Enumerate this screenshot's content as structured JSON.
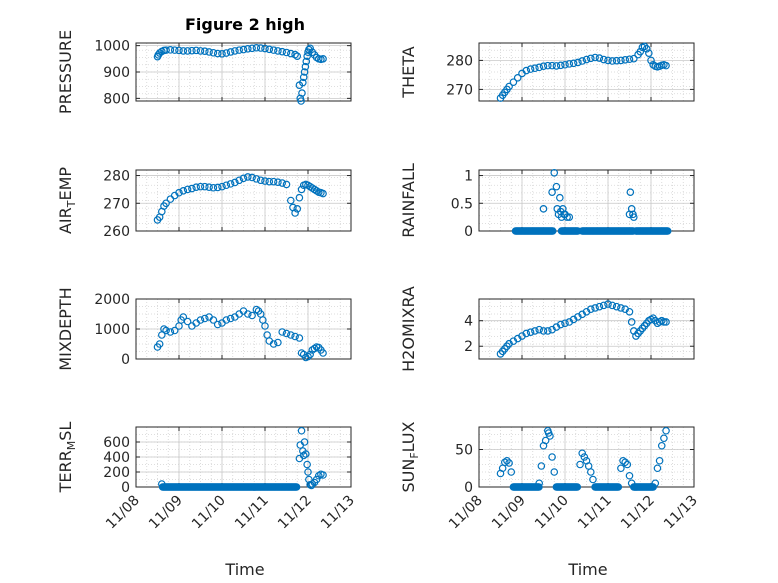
{
  "figure": {
    "title": "Figure 2 high",
    "marker_color": "#0072BD",
    "xlabel": "Time",
    "xticks": [
      "11/08",
      "11/09",
      "11/10",
      "11/11",
      "11/12",
      "11/13"
    ]
  },
  "chart_data": [
    {
      "type": "scatter",
      "ylabel": "PRESSURE",
      "title": "Figure 2 high",
      "xlim": [
        8,
        13
      ],
      "ylim": [
        790,
        1010
      ],
      "yticks": [
        800,
        900,
        1000
      ],
      "grid": true,
      "x": [
        8.5,
        8.52,
        8.55,
        8.6,
        8.65,
        8.7,
        8.8,
        8.9,
        9.0,
        9.1,
        9.2,
        9.3,
        9.4,
        9.5,
        9.6,
        9.7,
        9.8,
        9.9,
        10.0,
        10.1,
        10.2,
        10.3,
        10.4,
        10.5,
        10.6,
        10.7,
        10.8,
        10.9,
        11.0,
        11.1,
        11.2,
        11.3,
        11.4,
        11.5,
        11.6,
        11.7,
        11.75,
        11.8,
        11.82,
        11.84,
        11.86,
        11.88,
        11.9,
        11.92,
        11.94,
        11.96,
        11.98,
        12.0,
        12.02,
        12.05,
        12.1,
        12.15,
        12.2,
        12.25,
        12.3,
        12.35
      ],
      "y": [
        958,
        965,
        972,
        978,
        982,
        983,
        984,
        983,
        982,
        980,
        980,
        981,
        982,
        980,
        979,
        976,
        973,
        970,
        969,
        972,
        976,
        980,
        983,
        985,
        988,
        990,
        992,
        991,
        989,
        986,
        983,
        980,
        977,
        974,
        970,
        966,
        960,
        850,
        800,
        790,
        820,
        860,
        880,
        900,
        920,
        940,
        960,
        975,
        985,
        990,
        975,
        965,
        955,
        950,
        948,
        950
      ]
    },
    {
      "type": "scatter",
      "ylabel": "THETA",
      "xlim": [
        8,
        13
      ],
      "ylim": [
        266,
        286
      ],
      "yticks": [
        270,
        280
      ],
      "grid": true,
      "x": [
        8.5,
        8.55,
        8.6,
        8.65,
        8.7,
        8.8,
        8.9,
        9.0,
        9.1,
        9.2,
        9.3,
        9.4,
        9.5,
        9.6,
        9.7,
        9.8,
        9.9,
        10.0,
        10.1,
        10.2,
        10.3,
        10.4,
        10.5,
        10.6,
        10.7,
        10.8,
        10.9,
        11.0,
        11.1,
        11.2,
        11.3,
        11.4,
        11.5,
        11.6,
        11.7,
        11.75,
        11.8,
        11.85,
        11.9,
        11.95,
        12.0,
        12.05,
        12.1,
        12.15,
        12.2,
        12.25,
        12.3,
        12.35
      ],
      "y": [
        267,
        268,
        269,
        270,
        271,
        272.5,
        274,
        275.5,
        276.5,
        277,
        277.3,
        277.6,
        278,
        278.2,
        278.2,
        278.1,
        278.3,
        278.5,
        278.8,
        279,
        279.3,
        279.8,
        280.3,
        280.7,
        281,
        280.8,
        280.3,
        280,
        279.8,
        279.9,
        280,
        280.2,
        280.4,
        280.6,
        282,
        283,
        284.5,
        284.8,
        284,
        282.5,
        280,
        278.5,
        278,
        277.8,
        278,
        278.3,
        278.5,
        278.2
      ]
    },
    {
      "type": "scatter",
      "ylabel": "AIR_TEMP",
      "xlim": [
        8,
        13
      ],
      "ylim": [
        260,
        282
      ],
      "yticks": [
        260,
        270,
        280
      ],
      "grid": true,
      "x": [
        8.5,
        8.55,
        8.6,
        8.65,
        8.7,
        8.8,
        8.9,
        9.0,
        9.1,
        9.2,
        9.3,
        9.4,
        9.5,
        9.6,
        9.7,
        9.8,
        9.9,
        10.0,
        10.1,
        10.2,
        10.3,
        10.4,
        10.5,
        10.6,
        10.7,
        10.8,
        10.9,
        11.0,
        11.1,
        11.2,
        11.3,
        11.4,
        11.5,
        11.6,
        11.65,
        11.7,
        11.75,
        11.8,
        11.85,
        11.9,
        11.95,
        12.0,
        12.05,
        12.1,
        12.15,
        12.2,
        12.25,
        12.3,
        12.35
      ],
      "y": [
        264,
        265,
        267,
        269,
        270,
        271.5,
        272.8,
        273.8,
        274.5,
        275,
        275.3,
        275.8,
        276,
        276,
        275.8,
        275.6,
        275.7,
        276,
        276.5,
        277,
        277.5,
        278.3,
        279,
        279.5,
        279.3,
        278.8,
        278.3,
        278,
        277.8,
        277.8,
        277.6,
        277.3,
        276.8,
        271,
        268.5,
        266.5,
        268,
        272,
        275,
        276.5,
        276.8,
        276.5,
        276,
        275.5,
        275,
        274.5,
        274,
        273.8,
        273.5
      ]
    },
    {
      "type": "scatter",
      "ylabel": "RAINFALL",
      "xlim": [
        8,
        13
      ],
      "ylim": [
        0,
        1.1
      ],
      "yticks": [
        0,
        0.5,
        1
      ],
      "grid": true,
      "x": [
        9.5,
        9.7,
        9.75,
        9.8,
        9.82,
        9.85,
        9.88,
        9.9,
        9.92,
        9.95,
        9.98,
        10.0,
        10.05,
        10.1,
        11.5,
        11.52,
        11.55,
        11.58,
        11.6
      ],
      "y": [
        0.4,
        0.7,
        1.05,
        0.8,
        0.4,
        0.3,
        0.6,
        0.35,
        0.25,
        0.4,
        0.3,
        0.3,
        0.25,
        0.25,
        0.3,
        0.7,
        0.4,
        0.3,
        0.25
      ],
      "baseline": {
        "y": 0,
        "x_start": 8.85,
        "x_end": 12.4,
        "segments": [
          [
            8.85,
            9.72
          ],
          [
            9.92,
            10.3
          ],
          [
            10.4,
            11.6
          ],
          [
            11.65,
            12.4
          ]
        ]
      }
    },
    {
      "type": "scatter",
      "ylabel": "MIXDEPTH",
      "xlim": [
        8,
        13
      ],
      "ylim": [
        0,
        2000
      ],
      "yticks": [
        0,
        1000,
        2000
      ],
      "grid": true,
      "x": [
        8.5,
        8.55,
        8.6,
        8.65,
        8.7,
        8.8,
        8.9,
        9.0,
        9.05,
        9.1,
        9.2,
        9.3,
        9.4,
        9.5,
        9.6,
        9.7,
        9.8,
        9.9,
        10.0,
        10.1,
        10.2,
        10.3,
        10.4,
        10.5,
        10.6,
        10.7,
        10.8,
        10.85,
        10.9,
        10.95,
        11.0,
        11.05,
        11.1,
        11.2,
        11.3,
        11.4,
        11.5,
        11.6,
        11.7,
        11.8,
        11.85,
        11.9,
        11.95,
        12.0,
        12.05,
        12.1,
        12.15,
        12.2,
        12.25,
        12.3,
        12.35
      ],
      "y": [
        400,
        500,
        800,
        1000,
        950,
        900,
        950,
        1100,
        1300,
        1400,
        1250,
        1100,
        1200,
        1300,
        1350,
        1400,
        1300,
        1150,
        1200,
        1300,
        1350,
        1400,
        1500,
        1600,
        1500,
        1450,
        1650,
        1600,
        1500,
        1300,
        1100,
        800,
        600,
        500,
        550,
        900,
        850,
        800,
        750,
        700,
        200,
        150,
        50,
        80,
        150,
        300,
        350,
        400,
        380,
        300,
        200
      ]
    },
    {
      "type": "scatter",
      "ylabel": "H2OMIXRA",
      "xlim": [
        8,
        13
      ],
      "ylim": [
        1,
        5.7
      ],
      "yticks": [
        2,
        4
      ],
      "grid": true,
      "x": [
        8.5,
        8.55,
        8.6,
        8.65,
        8.7,
        8.8,
        8.9,
        9.0,
        9.1,
        9.2,
        9.3,
        9.4,
        9.5,
        9.6,
        9.7,
        9.8,
        9.9,
        10.0,
        10.1,
        10.2,
        10.3,
        10.4,
        10.5,
        10.6,
        10.7,
        10.8,
        10.9,
        11.0,
        11.1,
        11.2,
        11.3,
        11.4,
        11.5,
        11.55,
        11.6,
        11.65,
        11.7,
        11.75,
        11.8,
        11.85,
        11.9,
        11.95,
        12.0,
        12.05,
        12.1,
        12.15,
        12.2,
        12.25,
        12.3,
        12.35
      ],
      "y": [
        1.4,
        1.6,
        1.8,
        2.0,
        2.2,
        2.4,
        2.6,
        2.8,
        3.0,
        3.1,
        3.2,
        3.3,
        3.2,
        3.2,
        3.3,
        3.5,
        3.7,
        3.8,
        3.9,
        4.1,
        4.3,
        4.5,
        4.7,
        4.9,
        5.0,
        5.1,
        5.2,
        5.3,
        5.2,
        5.1,
        5.0,
        4.9,
        4.7,
        3.9,
        3.2,
        2.8,
        3.0,
        3.2,
        3.4,
        3.6,
        3.8,
        4.0,
        4.1,
        4.2,
        4.0,
        3.8,
        3.9,
        4.0,
        3.9,
        3.9
      ]
    },
    {
      "type": "scatter",
      "ylabel": "TERR_MSL",
      "xlim": [
        8,
        13
      ],
      "ylim": [
        0,
        800
      ],
      "yticks": [
        0,
        200,
        400,
        600
      ],
      "grid": true,
      "x": [
        8.6,
        11.8,
        11.82,
        11.85,
        11.88,
        11.9,
        11.92,
        11.95,
        11.98,
        12.0,
        12.02,
        12.05,
        12.08,
        12.1,
        12.15,
        12.2,
        12.25,
        12.3,
        12.35
      ],
      "y": [
        40,
        380,
        560,
        750,
        480,
        420,
        600,
        440,
        300,
        200,
        100,
        30,
        20,
        40,
        60,
        100,
        150,
        170,
        160
      ],
      "baseline": {
        "y": 0,
        "x_start": 8.62,
        "x_end": 11.75
      }
    },
    {
      "type": "scatter",
      "ylabel": "SUN_FLUX",
      "xlim": [
        8,
        13
      ],
      "ylim": [
        0,
        80
      ],
      "yticks": [
        0,
        50
      ],
      "grid": true,
      "x": [
        8.5,
        8.55,
        8.6,
        8.65,
        8.7,
        8.75,
        9.4,
        9.45,
        9.5,
        9.55,
        9.6,
        9.62,
        9.65,
        9.7,
        9.75,
        10.35,
        10.4,
        10.45,
        10.5,
        10.55,
        10.6,
        10.65,
        11.3,
        11.35,
        11.4,
        11.45,
        11.5,
        11.55,
        12.1,
        12.15,
        12.2,
        12.25,
        12.3,
        12.35
      ],
      "y": [
        18,
        25,
        33,
        35,
        32,
        20,
        5,
        28,
        55,
        62,
        75,
        72,
        68,
        40,
        20,
        30,
        45,
        40,
        35,
        28,
        20,
        10,
        25,
        35,
        33,
        30,
        15,
        5,
        5,
        25,
        35,
        55,
        65,
        75
      ],
      "baseline": {
        "y": 0,
        "segments": [
          [
            8.8,
            9.4
          ],
          [
            9.8,
            10.3
          ],
          [
            10.7,
            11.25
          ],
          [
            11.6,
            12.05
          ]
        ]
      }
    }
  ]
}
